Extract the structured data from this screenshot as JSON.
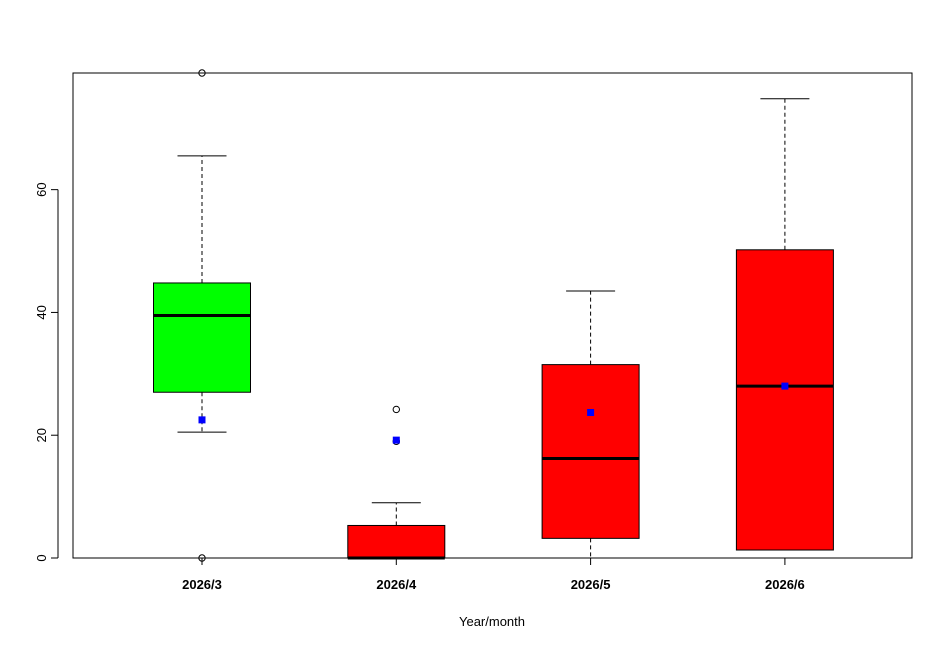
{
  "chart_data": {
    "type": "boxplot",
    "title": "",
    "xlabel": "Year/month",
    "ylabel": "",
    "ylim": [
      0,
      79
    ],
    "yticks": [
      0,
      20,
      40,
      60
    ],
    "grid": false,
    "legend": "none",
    "categories": [
      "2026/3",
      "2026/4",
      "2026/5",
      "2026/6"
    ],
    "boxes": [
      {
        "category": "2026/3",
        "whisker_low": 20.5,
        "q1": 27,
        "median": 39.5,
        "q3": 44.8,
        "whisker_high": 65.5,
        "mean": 22.5,
        "outliers": [
          0,
          79
        ],
        "color": "#00ff00"
      },
      {
        "category": "2026/4",
        "whisker_low": 0,
        "q1": 0,
        "median": 0,
        "q3": 5.3,
        "whisker_high": 9,
        "mean": 19.2,
        "outliers": [
          19,
          24.2
        ],
        "color": "#ff0000"
      },
      {
        "category": "2026/5",
        "whisker_low": 0,
        "q1": 3.2,
        "median": 16.2,
        "q3": 31.5,
        "whisker_high": 43.5,
        "mean": 23.7,
        "outliers": [],
        "color": "#ff0000"
      },
      {
        "category": "2026/6",
        "whisker_low": 1.3,
        "q1": 1.3,
        "median": 28,
        "q3": 50.2,
        "whisker_high": 74.8,
        "mean": 28,
        "outliers": [],
        "color": "#ff0000"
      }
    ],
    "mean_marker_color": "#0000ff"
  }
}
